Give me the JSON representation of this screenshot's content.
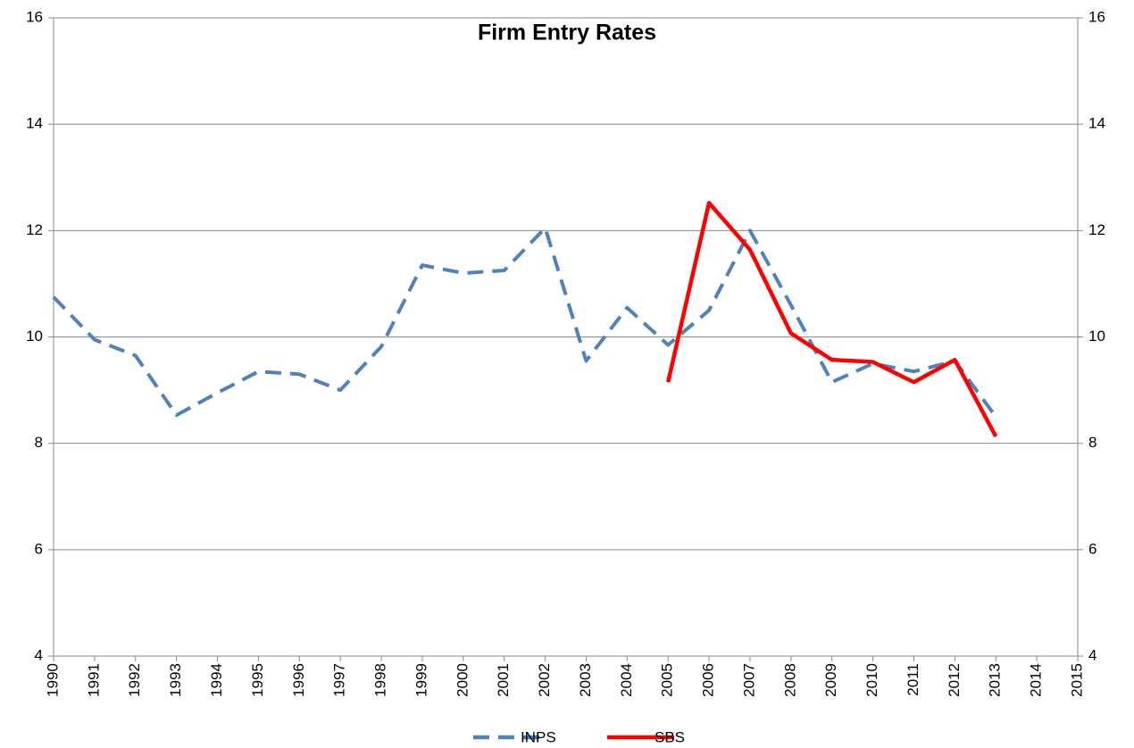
{
  "chart_data": {
    "type": "line",
    "title": "Firm Entry Rates",
    "x": [
      1990,
      1991,
      1992,
      1993,
      1994,
      1995,
      1996,
      1997,
      1998,
      1999,
      2000,
      2001,
      2002,
      2003,
      2004,
      2005,
      2006,
      2007,
      2008,
      2009,
      2010,
      2011,
      2012,
      2013,
      2014,
      2015
    ],
    "xlim": [
      1990,
      2015
    ],
    "xticks": [
      1990,
      1991,
      1992,
      1993,
      1994,
      1995,
      1996,
      1997,
      1998,
      1999,
      2000,
      2001,
      2002,
      2003,
      2004,
      2005,
      2006,
      2007,
      2008,
      2009,
      2010,
      2011,
      2012,
      2013,
      2014,
      2015
    ],
    "ylim": [
      4,
      16
    ],
    "yticks": [
      4,
      6,
      8,
      10,
      12,
      14,
      16
    ],
    "y2lim": [
      4,
      16
    ],
    "y2ticks": [
      4,
      6,
      8,
      10,
      12,
      14,
      16
    ],
    "grid": true,
    "legend": "bottom",
    "series": [
      {
        "name": "INPS",
        "color": "#4f81bd",
        "dashed": true,
        "values": [
          10.75,
          9.95,
          9.65,
          8.53,
          8.95,
          9.35,
          9.3,
          9.0,
          9.82,
          11.35,
          11.2,
          11.25,
          12.05,
          9.55,
          10.55,
          9.85,
          10.5,
          12.0,
          10.6,
          9.15,
          9.5,
          9.35,
          9.55,
          8.5,
          null,
          null
        ]
      },
      {
        "name": "SBS",
        "color": "#ff0000",
        "axis": "y2",
        "values": [
          null,
          null,
          null,
          null,
          null,
          null,
          null,
          null,
          null,
          null,
          null,
          null,
          null,
          null,
          null,
          9.15,
          12.52,
          11.64,
          10.07,
          9.57,
          9.53,
          9.15,
          9.57,
          8.13,
          null,
          null
        ]
      }
    ]
  }
}
